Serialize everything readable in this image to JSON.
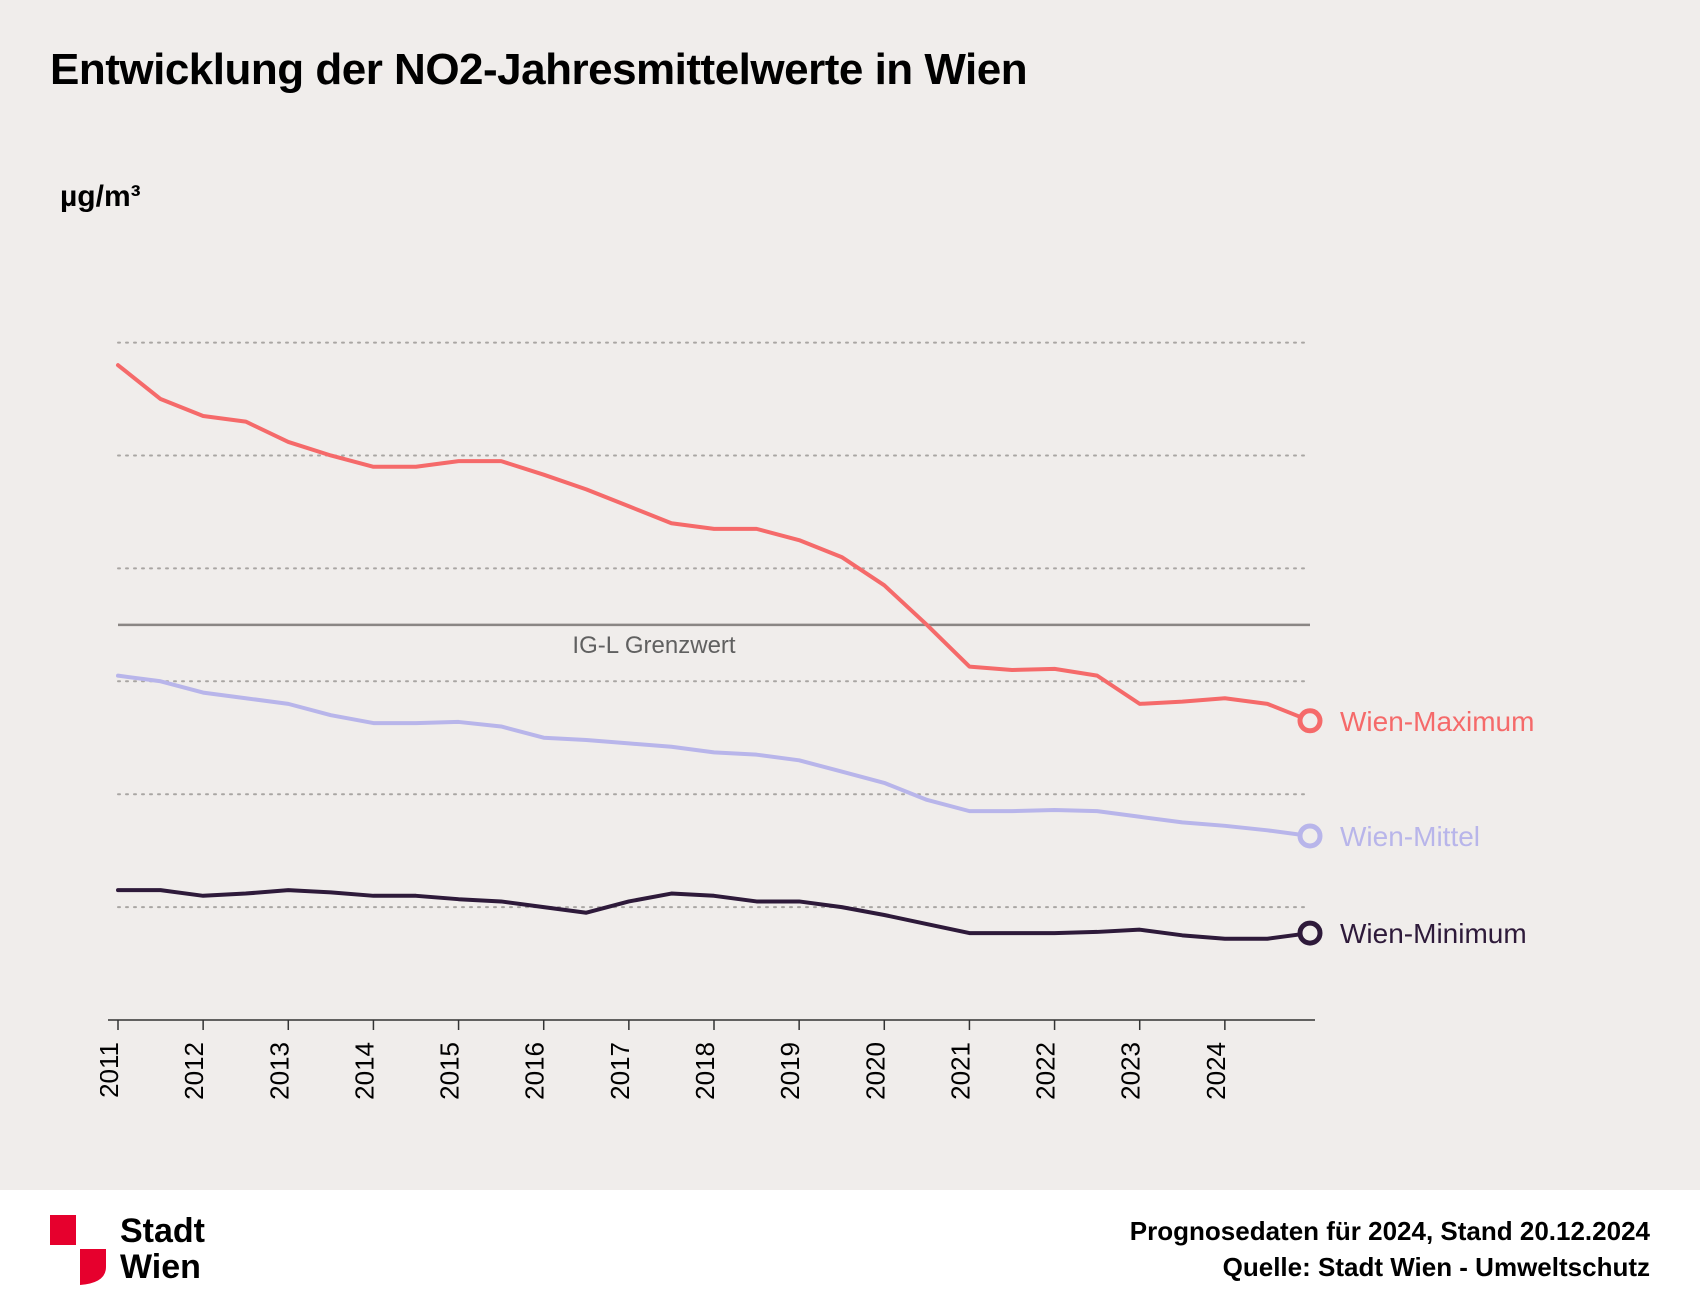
{
  "title": "Entwicklung der NO2-Jahresmittelwerte in Wien",
  "ylabel": "µg/m³",
  "chart": {
    "type": "line",
    "background_color": "#f0edeb",
    "grid_color": "#a9a6a3",
    "axis_color": "#333333",
    "years": [
      2011,
      2012,
      2013,
      2014,
      2015,
      2016,
      2017,
      2018,
      2019,
      2020,
      2021,
      2022,
      2023,
      2024
    ],
    "ylim": [
      0,
      62
    ],
    "yticks": [
      0,
      10,
      20,
      30,
      40,
      50,
      60
    ],
    "tick_fontsize": 26,
    "label_fontsize": 28,
    "threshold": {
      "value": 35,
      "label": "IG-L Grenzwert",
      "color": "#8a8684",
      "label_color": "#606060",
      "width": 2.5
    },
    "series": [
      {
        "name": "Wien-Maximum",
        "color": "#f56a6a",
        "width": 4,
        "end_marker": true,
        "values": [
          58,
          55,
          53.5,
          53,
          51.2,
          50,
          49,
          49,
          49.5,
          49.5,
          48.3,
          47,
          45.5,
          44,
          43.5,
          43.5,
          42.5,
          41,
          38.5,
          35,
          31.3,
          31,
          31.1,
          30.5,
          28,
          28.2,
          28.5,
          28,
          26.5
        ]
      },
      {
        "name": "Wien-Mittel",
        "color": "#b8b5ea",
        "width": 4,
        "end_marker": true,
        "values": [
          30.5,
          30,
          29,
          28.5,
          28,
          27,
          26.3,
          26.3,
          26.4,
          26,
          25,
          24.8,
          24.5,
          24.2,
          23.7,
          23.5,
          23,
          22,
          21,
          19.5,
          18.5,
          18.5,
          18.6,
          18.5,
          18,
          17.5,
          17.2,
          16.8,
          16.3
        ]
      },
      {
        "name": "Wien-Minimum",
        "color": "#2e1a3a",
        "width": 4,
        "end_marker": true,
        "values": [
          11.5,
          11.5,
          11,
          11.2,
          11.5,
          11.3,
          11,
          11,
          10.7,
          10.5,
          10,
          9.5,
          10.5,
          11.2,
          11,
          10.5,
          10.5,
          10,
          9.3,
          8.5,
          7.7,
          7.7,
          7.7,
          7.8,
          8,
          7.5,
          7.2,
          7.2,
          7.7
        ]
      }
    ]
  },
  "logo": {
    "org_line1": "Stadt",
    "org_line2": "Wien",
    "shield_color": "#e6002d"
  },
  "footer": {
    "line1": "Prognosedaten für 2024, Stand 20.12.2024",
    "line2": "Quelle: Stadt Wien - Umweltschutz"
  }
}
